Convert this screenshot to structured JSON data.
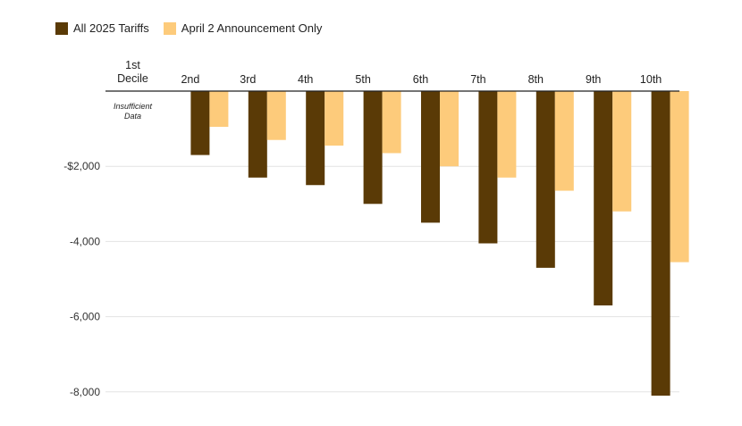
{
  "legend": [
    {
      "name": "All 2025 Tariffs",
      "color": "#5a3a06"
    },
    {
      "name": "April 2 Announcement Only",
      "color": "#fdcb7b"
    }
  ],
  "chart_data": {
    "type": "bar",
    "categories": [
      [
        "1st",
        "Decile"
      ],
      [
        "2nd"
      ],
      [
        "3rd"
      ],
      [
        "4th"
      ],
      [
        "5th"
      ],
      [
        "6th"
      ],
      [
        "7th"
      ],
      [
        "8th"
      ],
      [
        "9th"
      ],
      [
        "10th"
      ]
    ],
    "series": [
      {
        "name": "All 2025 Tariffs",
        "color": "#5a3a06",
        "values": [
          null,
          -1700,
          -2300,
          -2500,
          -3000,
          -3500,
          -4050,
          -4700,
          -5700,
          -8100
        ]
      },
      {
        "name": "April 2 Announcement Only",
        "color": "#fdcb7b",
        "values": [
          null,
          -950,
          -1300,
          -1450,
          -1650,
          -2000,
          -2300,
          -2650,
          -3200,
          -4550
        ]
      }
    ],
    "yticks": [
      {
        "value": -2000,
        "label": "-$2,000"
      },
      {
        "value": -4000,
        "label": "-4,000"
      },
      {
        "value": -6000,
        "label": "-6,000"
      },
      {
        "value": -8000,
        "label": "-8,000"
      }
    ],
    "ylim": [
      -8100,
      0
    ],
    "annotation": [
      "Insufficient",
      "Data"
    ],
    "title": "",
    "xlabel": "",
    "ylabel": "",
    "grid": true,
    "legend_position": "top-left"
  }
}
